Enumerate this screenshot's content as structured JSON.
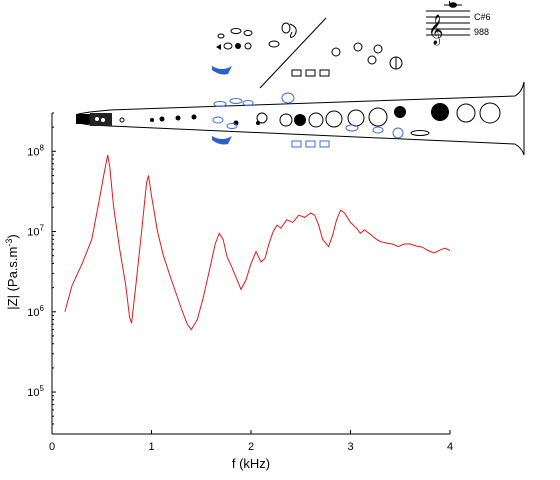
{
  "chart_data": {
    "type": "line",
    "xlabel": "f (kHz)",
    "ylabel_main": "|Z| (Pa.s.m",
    "ylabel_sup": "-3",
    "ylabel_end": ")",
    "y_scale": "log",
    "xlim": [
      0,
      4
    ],
    "ylim": [
      30000,
      300000000
    ],
    "x_ticks": [
      0,
      1,
      2,
      3,
      4
    ],
    "y_ticks": [
      {
        "value": 100000,
        "base": "10",
        "exp": "5"
      },
      {
        "value": 1000000,
        "base": "10",
        "exp": "6"
      },
      {
        "value": 10000000,
        "base": "10",
        "exp": "7"
      },
      {
        "value": 100000000,
        "base": "10",
        "exp": "8"
      }
    ],
    "grid": false,
    "line_color": "#e0191b",
    "series": [
      {
        "x": [
          0.13,
          0.2,
          0.3,
          0.4,
          0.47,
          0.52,
          0.56,
          0.58,
          0.62,
          0.68,
          0.74,
          0.78,
          0.8,
          0.84,
          0.9,
          0.95,
          0.97,
          1.0,
          1.06,
          1.12,
          1.2,
          1.3,
          1.36,
          1.4,
          1.46,
          1.52,
          1.58,
          1.64,
          1.68,
          1.72,
          1.76,
          1.8,
          1.86,
          1.9,
          1.95,
          2.0,
          2.05,
          2.1,
          2.14,
          2.18,
          2.22,
          2.26,
          2.3,
          2.36,
          2.42,
          2.48,
          2.54,
          2.6,
          2.64,
          2.68,
          2.72,
          2.78,
          2.82,
          2.86,
          2.9,
          2.94,
          3.0,
          3.06,
          3.1,
          3.14,
          3.2,
          3.26,
          3.3,
          3.36,
          3.42,
          3.48,
          3.54,
          3.6,
          3.66,
          3.72,
          3.78,
          3.84,
          3.9,
          3.95,
          4.0
        ],
        "y": [
          1000000,
          2100000,
          3900000,
          8000000,
          23000000,
          50000000,
          90000000,
          65000000,
          20000000,
          6000000,
          2200000,
          850000,
          720000,
          2000000,
          10000000,
          40000000,
          50000000,
          28000000,
          10000000,
          5000000,
          2500000,
          1100000,
          700000,
          600000,
          800000,
          1500000,
          3200000,
          7000000,
          9500000,
          8000000,
          4800000,
          3800000,
          2500000,
          1900000,
          2500000,
          4000000,
          5600000,
          4200000,
          4600000,
          7000000,
          9800000,
          12000000,
          11000000,
          14000000,
          13000000,
          16000000,
          15000000,
          17000000,
          16000000,
          12000000,
          8000000,
          6500000,
          9000000,
          14000000,
          18500000,
          17000000,
          13000000,
          11000000,
          9500000,
          10500000,
          9200000,
          8000000,
          7500000,
          7200000,
          7000000,
          6500000,
          7000000,
          7000000,
          6600000,
          6400000,
          5800000,
          5400000,
          5900000,
          6200000,
          5800000
        ]
      }
    ],
    "annotations": [
      "C#6",
      "988"
    ]
  }
}
